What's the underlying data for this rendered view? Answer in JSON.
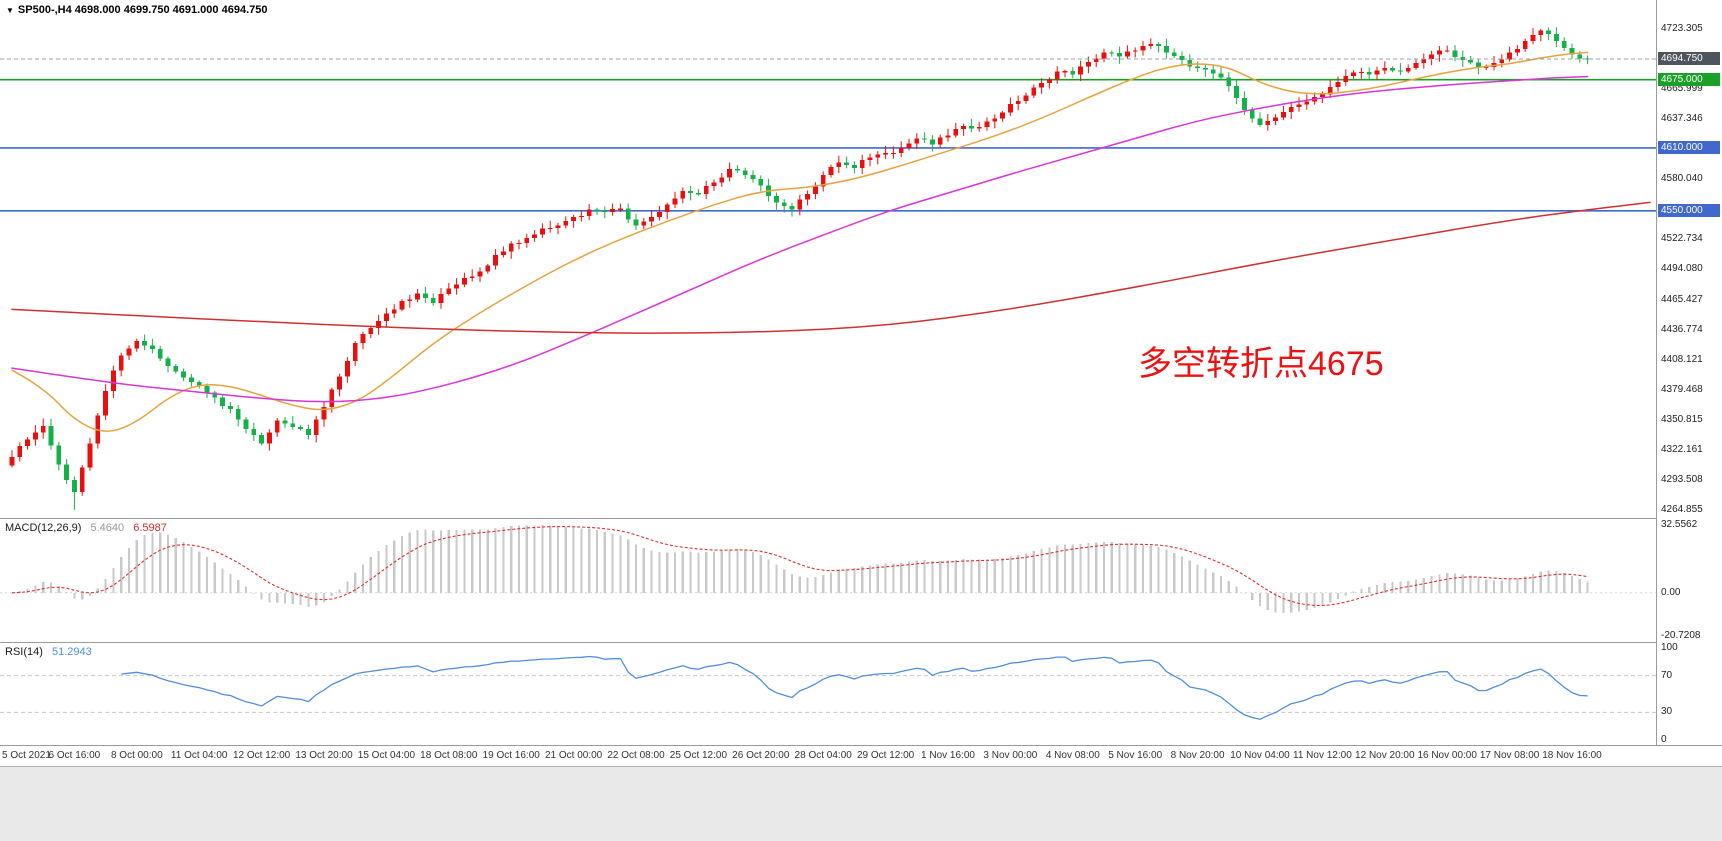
{
  "window": {
    "bg": "#ffffff"
  },
  "header": {
    "collapse_icon": "▼",
    "title": "SP500-,H4 4698.000 4699.750 4691.000 4694.750",
    "symbol": "SP500-",
    "timeframe": "H4",
    "open": "4698.000",
    "high": "4699.750",
    "low": "4691.000",
    "close": "4694.750"
  },
  "annotation": {
    "text": "多空转折点4675",
    "color": "#ee1111"
  },
  "macd_panel": {
    "title": "MACD(12,26,9)",
    "main_value": "5.4640",
    "signal_value": "6.5987",
    "main_color": "#9a9a9a",
    "signal_color": "#d03030",
    "axis": [
      {
        "value": 32.5562,
        "text": "32.5562"
      },
      {
        "value": 0,
        "text": "0.00"
      },
      {
        "value": -20.7208,
        "text": "-20.7208"
      }
    ]
  },
  "rsi_panel": {
    "title": "RSI(14)",
    "value": "51.2943",
    "value_color": "#4f8fde",
    "axis": [
      {
        "value": 100,
        "text": "100"
      },
      {
        "value": 70,
        "text": "70"
      },
      {
        "value": 30,
        "text": "30"
      },
      {
        "value": 0,
        "text": "0"
      }
    ]
  },
  "price_scale": {
    "ticks": [
      {
        "price": 4723.305,
        "text": "4723.305"
      },
      {
        "price": 4665.999,
        "text": "4665.999"
      },
      {
        "price": 4637.346,
        "text": "4637.346"
      },
      {
        "price": 4580.04,
        "text": "4580.040"
      },
      {
        "price": 4522.734,
        "text": "4522.734"
      },
      {
        "price": 4494.08,
        "text": "4494.080"
      },
      {
        "price": 4465.427,
        "text": "4465.427"
      },
      {
        "price": 4436.774,
        "text": "4436.774"
      },
      {
        "price": 4408.121,
        "text": "4408.121"
      },
      {
        "price": 4379.468,
        "text": "4379.468"
      },
      {
        "price": 4350.815,
        "text": "4350.815"
      },
      {
        "price": 4322.161,
        "text": "4322.161"
      },
      {
        "price": 4293.508,
        "text": "4293.508"
      },
      {
        "price": 4264.855,
        "text": "4264.855"
      }
    ],
    "boxes": [
      {
        "price": 4694.75,
        "text": "4694.750",
        "bg": "#4e545e",
        "name": "current-price-label"
      },
      {
        "price": 4675.0,
        "text": "4675.000",
        "bg": "#18a028",
        "name": "hline-4675-label"
      },
      {
        "price": 4610.0,
        "text": "4610.000",
        "bg": "#4169cd",
        "name": "hline-4610-label"
      },
      {
        "price": 4550.0,
        "text": "4550.000",
        "bg": "#4169cd",
        "name": "hline-4550-label"
      }
    ]
  },
  "time_axis": {
    "labels": [
      {
        "bar": 0,
        "text": "5 Oct 2021"
      },
      {
        "bar": 8,
        "text": "6 Oct 16:00"
      },
      {
        "bar": 16,
        "text": "8 Oct 00:00"
      },
      {
        "bar": 24,
        "text": "11 Oct 04:00"
      },
      {
        "bar": 32,
        "text": "12 Oct 12:00"
      },
      {
        "bar": 40,
        "text": "13 Oct 20:00"
      },
      {
        "bar": 48,
        "text": "15 Oct 04:00"
      },
      {
        "bar": 56,
        "text": "18 Oct 08:00"
      },
      {
        "bar": 64,
        "text": "19 Oct 16:00"
      },
      {
        "bar": 72,
        "text": "21 Oct 00:00"
      },
      {
        "bar": 80,
        "text": "22 Oct 08:00"
      },
      {
        "bar": 88,
        "text": "25 Oct 12:00"
      },
      {
        "bar": 96,
        "text": "26 Oct 20:00"
      },
      {
        "bar": 104,
        "text": "28 Oct 04:00"
      },
      {
        "bar": 112,
        "text": "29 Oct 12:00"
      },
      {
        "bar": 120,
        "text": "1 Nov 16:00"
      },
      {
        "bar": 128,
        "text": "3 Nov 00:00"
      },
      {
        "bar": 136,
        "text": "4 Nov 08:00"
      },
      {
        "bar": 144,
        "text": "5 Nov 16:00"
      },
      {
        "bar": 152,
        "text": "8 Nov 20:00"
      },
      {
        "bar": 160,
        "text": "10 Nov 04:00"
      },
      {
        "bar": 168,
        "text": "11 Nov 12:00"
      },
      {
        "bar": 176,
        "text": "12 Nov 20:00"
      },
      {
        "bar": 184,
        "text": "16 Nov 00:00"
      },
      {
        "bar": 192,
        "text": "17 Nov 08:00"
      },
      {
        "bar": 200,
        "text": "18 Nov 16:00"
      }
    ]
  },
  "chart_data": {
    "type": "candlestick",
    "symbol": "SP500-",
    "period": "H4",
    "up_color": "#e80f0f",
    "down_color": "#14b04a",
    "y_axis": {
      "min": 4258,
      "max": 4751
    },
    "closes_every_2_bars": [
      4315,
      4332,
      4345,
      4308,
      4282,
      4328,
      4378,
      4412,
      4426,
      4418,
      4402,
      4391,
      4383,
      4372,
      4361,
      4342,
      4328,
      4350,
      4344,
      4336,
      4363,
      4392,
      4424,
      4438,
      4452,
      4464,
      4471,
      4462,
      4476,
      4486,
      4492,
      4508,
      4519,
      4524,
      4533,
      4536,
      4544,
      4551,
      4549,
      4552,
      4536,
      4544,
      4556,
      4569,
      4566,
      4577,
      4590,
      4584,
      4574,
      4558,
      4551,
      4566,
      4584,
      4596,
      4591,
      4601,
      4605,
      4610,
      4619,
      4613,
      4622,
      4631,
      4630,
      4638,
      4652,
      4660,
      4672,
      4683,
      4680,
      4692,
      4701,
      4697,
      4703,
      4709,
      4701,
      4694,
      4686,
      4681,
      4669,
      4646,
      4632,
      4639,
      4649,
      4654,
      4661,
      4673,
      4682,
      4680,
      4686,
      4683,
      4691,
      4699,
      4703,
      4694,
      4687,
      4691,
      4701,
      4712,
      4722,
      4712,
      4699,
      4694.75
    ],
    "session_low": {
      "bar": 8,
      "price": 4264.855
    },
    "session_high": {
      "bar": 196,
      "price": 4723.305
    },
    "current_price": 4694.75,
    "current_price_line_color": "#9aa0a6",
    "hlines": [
      {
        "price": 4675.0,
        "color": "#18a028"
      },
      {
        "price": 4610.0,
        "color": "#4169cd"
      },
      {
        "price": 4550.0,
        "color": "#4169cd"
      }
    ],
    "moving_averages": [
      {
        "name": "ma-fast",
        "color": "#e8a33c",
        "anchors": [
          [
            0,
            4398
          ],
          [
            4,
            4382
          ],
          [
            8,
            4350
          ],
          [
            12,
            4337
          ],
          [
            16,
            4348
          ],
          [
            20,
            4372
          ],
          [
            24,
            4385
          ],
          [
            28,
            4383
          ],
          [
            32,
            4374
          ],
          [
            36,
            4364
          ],
          [
            40,
            4359
          ],
          [
            44,
            4367
          ],
          [
            48,
            4387
          ],
          [
            54,
            4424
          ],
          [
            60,
            4453
          ],
          [
            66,
            4479
          ],
          [
            72,
            4503
          ],
          [
            78,
            4523
          ],
          [
            84,
            4540
          ],
          [
            90,
            4556
          ],
          [
            96,
            4569
          ],
          [
            102,
            4572
          ],
          [
            108,
            4580
          ],
          [
            114,
            4593
          ],
          [
            120,
            4607
          ],
          [
            126,
            4621
          ],
          [
            132,
            4638
          ],
          [
            138,
            4658
          ],
          [
            144,
            4677
          ],
          [
            148,
            4687
          ],
          [
            152,
            4691
          ],
          [
            156,
            4687
          ],
          [
            160,
            4672
          ],
          [
            164,
            4663
          ],
          [
            168,
            4661
          ],
          [
            172,
            4664
          ],
          [
            176,
            4669
          ],
          [
            180,
            4676
          ],
          [
            184,
            4682
          ],
          [
            188,
            4687
          ],
          [
            192,
            4690
          ],
          [
            196,
            4696
          ],
          [
            200,
            4700
          ],
          [
            202,
            4701
          ]
        ]
      },
      {
        "name": "ma-mid",
        "color": "#d935d9",
        "anchors": [
          [
            0,
            4400
          ],
          [
            8,
            4391
          ],
          [
            16,
            4383
          ],
          [
            24,
            4377
          ],
          [
            32,
            4371
          ],
          [
            40,
            4367
          ],
          [
            48,
            4371
          ],
          [
            56,
            4384
          ],
          [
            64,
            4402
          ],
          [
            72,
            4426
          ],
          [
            80,
            4452
          ],
          [
            88,
            4478
          ],
          [
            96,
            4504
          ],
          [
            104,
            4527
          ],
          [
            112,
            4549
          ],
          [
            120,
            4567
          ],
          [
            128,
            4585
          ],
          [
            136,
            4602
          ],
          [
            144,
            4619
          ],
          [
            152,
            4636
          ],
          [
            160,
            4648
          ],
          [
            168,
            4658
          ],
          [
            176,
            4665
          ],
          [
            184,
            4670
          ],
          [
            192,
            4674
          ],
          [
            198,
            4677
          ],
          [
            202,
            4678
          ]
        ]
      },
      {
        "name": "ma-slow",
        "color": "#d32f2f",
        "anchors": [
          [
            0,
            4456
          ],
          [
            16,
            4450
          ],
          [
            32,
            4444
          ],
          [
            48,
            4439
          ],
          [
            64,
            4435
          ],
          [
            80,
            4433
          ],
          [
            96,
            4434
          ],
          [
            112,
            4440
          ],
          [
            128,
            4456
          ],
          [
            144,
            4477
          ],
          [
            160,
            4500
          ],
          [
            176,
            4521
          ],
          [
            192,
            4541
          ],
          [
            202,
            4551
          ],
          [
            210,
            4558
          ]
        ]
      }
    ],
    "macd": {
      "fast": 12,
      "slow": 26,
      "signal": 9,
      "hist_color": "#c9c9c9",
      "signal_color": "#e03030",
      "axis_max": 32.5562,
      "axis_min": -20.7208
    },
    "rsi": {
      "period": 14,
      "color": "#4f8fde",
      "levels": [
        70,
        30
      ]
    }
  }
}
